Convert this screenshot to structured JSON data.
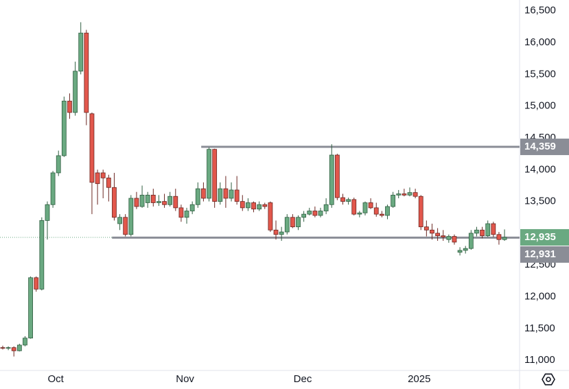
{
  "chart_data": {
    "type": "candlestick",
    "open": [
      11200,
      11190,
      11200,
      11150,
      11240,
      11350,
      12300,
      12120,
      13200,
      13450,
      13950,
      14220,
      15080,
      14900,
      15550,
      16150,
      14880,
      13950,
      13950,
      13870,
      13720,
      13150,
      13250,
      12980,
      13550,
      13420,
      13480,
      13600,
      13480,
      13500,
      13450,
      13580,
      13400,
      13250,
      13350,
      13450,
      13700,
      13550,
      14320,
      13500,
      13700,
      13550,
      13680,
      13500,
      13400,
      13480,
      13380,
      13450,
      13480,
      13050,
      12980,
      13020,
      13250,
      13100,
      13250,
      13300,
      13350,
      13280,
      13350,
      13450,
      14230,
      13560,
      13500,
      13530,
      13300,
      13320,
      13480,
      13400,
      13300,
      13280,
      13420,
      13600,
      13620,
      13600,
      13640,
      13580,
      13100,
      13050,
      13000,
      12960,
      12900,
      12950,
      12700,
      12730,
      12760,
      13000,
      13050,
      12960,
      13150,
      12980,
      12900
    ],
    "high": [
      11230,
      11220,
      11220,
      11260,
      11380,
      12320,
      12320,
      13250,
      13500,
      13980,
      14300,
      15150,
      15200,
      15700,
      16320,
      16200,
      14900,
      14000,
      14000,
      13920,
      13950,
      13300,
      13300,
      13600,
      13650,
      13750,
      13650,
      13700,
      13600,
      13620,
      13650,
      13700,
      13450,
      13400,
      13500,
      13800,
      13800,
      14350,
      14330,
      13800,
      13900,
      13800,
      13900,
      13600,
      13550,
      13500,
      13500,
      13480,
      13500,
      13200,
      13100,
      13300,
      13300,
      13280,
      13350,
      13400,
      13420,
      13400,
      13550,
      14400,
      14250,
      13620,
      13560,
      13560,
      13350,
      13500,
      13550,
      13480,
      13350,
      13450,
      13650,
      13680,
      13700,
      13720,
      13700,
      13600,
      13200,
      13150,
      13080,
      13050,
      12980,
      12980,
      12780,
      12800,
      13050,
      13100,
      13100,
      13200,
      13180,
      13020,
      13060
    ],
    "low": [
      11170,
      11160,
      11060,
      11140,
      11220,
      11340,
      12080,
      12100,
      12900,
      13400,
      13900,
      14200,
      14800,
      14850,
      15500,
      14700,
      13300,
      13450,
      13550,
      13500,
      13200,
      13050,
      12950,
      12950,
      13380,
      13400,
      13400,
      13420,
      13430,
      13400,
      13420,
      13350,
      13180,
      13150,
      13300,
      13400,
      13500,
      13500,
      13400,
      13450,
      13400,
      13500,
      13450,
      13350,
      13350,
      13330,
      13350,
      13380,
      13020,
      12900,
      12880,
      12980,
      13080,
      13050,
      13180,
      13280,
      13250,
      13250,
      13300,
      13400,
      13520,
      13450,
      13450,
      13280,
      13250,
      13280,
      13380,
      13260,
      13250,
      13220,
      13400,
      13550,
      13580,
      13580,
      13550,
      13050,
      12950,
      12900,
      12880,
      12880,
      12850,
      12820,
      12650,
      12680,
      12740,
      12950,
      12920,
      12940,
      12940,
      12820,
      12880
    ],
    "close": [
      11190,
      11200,
      11150,
      11240,
      11350,
      12300,
      12120,
      13200,
      13450,
      13950,
      14220,
      15080,
      14900,
      15550,
      16150,
      14900,
      13800,
      13780,
      13870,
      13720,
      13250,
      13250,
      12980,
      13550,
      13420,
      13600,
      13600,
      13480,
      13500,
      13450,
      13580,
      13400,
      13250,
      13350,
      13450,
      13700,
      13550,
      14320,
      13500,
      13700,
      13550,
      13680,
      13500,
      13400,
      13480,
      13380,
      13450,
      13420,
      13050,
      12980,
      13020,
      13250,
      13100,
      13250,
      13300,
      13350,
      13280,
      13350,
      13450,
      14230,
      13560,
      13500,
      13530,
      13300,
      13320,
      13480,
      13400,
      13300,
      13280,
      13420,
      13600,
      13620,
      13600,
      13640,
      13580,
      13100,
      13050,
      13000,
      12960,
      12940,
      12950,
      12860,
      12730,
      12760,
      13000,
      13050,
      12960,
      13150,
      12980,
      12900,
      12935
    ],
    "up_color": "#6aa981",
    "down_color": "#e2574c",
    "xlim": [
      -0.49,
      92.7
    ],
    "xticks": [
      {
        "value": 9.5,
        "label": "Oct"
      },
      {
        "value": 32.7,
        "label": "Nov"
      },
      {
        "value": 53.8,
        "label": "Dec"
      },
      {
        "value": 74.7,
        "label": "2025"
      }
    ],
    "ylim": [
      10840,
      16670
    ],
    "yticks": [
      {
        "value": 11000,
        "label": "11,000"
      },
      {
        "value": 11500,
        "label": "11,500"
      },
      {
        "value": 12000,
        "label": "12,000"
      },
      {
        "value": 12500,
        "label": "12,500"
      },
      {
        "value": 13000,
        "label": "13,000"
      },
      {
        "value": 13500,
        "label": "13,500"
      },
      {
        "value": 14000,
        "label": "14,000"
      },
      {
        "value": 14500,
        "label": "14,500"
      },
      {
        "value": 15000,
        "label": "15,000"
      },
      {
        "value": 15500,
        "label": "15,500"
      },
      {
        "value": 16000,
        "label": "16,000"
      },
      {
        "value": 16500,
        "label": "16,500"
      }
    ],
    "levels": [
      {
        "value": 14359,
        "label": "14,359",
        "x_start": 35.6
      },
      {
        "value": 12931,
        "label": "12,931",
        "x_start": 19.6
      }
    ],
    "last_price": {
      "value": 12935,
      "label": "12,935"
    }
  }
}
